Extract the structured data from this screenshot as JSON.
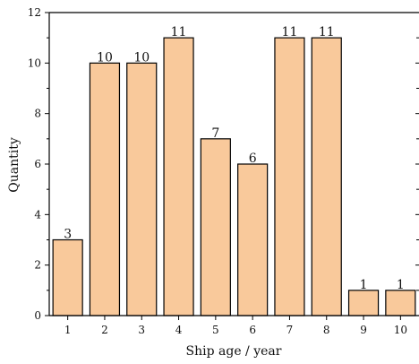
{
  "chart_data": {
    "type": "bar",
    "categories": [
      "1",
      "2",
      "3",
      "4",
      "5",
      "6",
      "7",
      "8",
      "9",
      "10"
    ],
    "values": [
      3,
      10,
      10,
      11,
      7,
      6,
      11,
      11,
      1,
      1
    ],
    "data_labels": [
      "3",
      "10",
      "10",
      "11",
      "7",
      "6",
      "11",
      "11",
      "1",
      "1"
    ],
    "xlabel": "Ship age / year",
    "ylabel": "Quantity",
    "ylim": [
      0,
      12
    ],
    "yticks": [
      0,
      2,
      4,
      6,
      8,
      10,
      12
    ],
    "ytick_labels": [
      "0",
      "2",
      "4",
      "6",
      "8",
      "10",
      "12"
    ],
    "grid": false,
    "bar_color": "#f9c99b",
    "bar_edge_color": "#000000"
  }
}
